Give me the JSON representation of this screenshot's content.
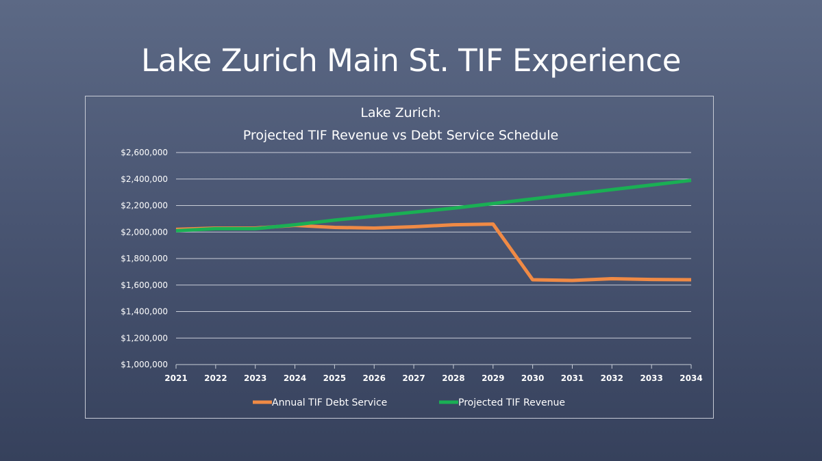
{
  "slide": {
    "title": "Lake Zurich Main St. TIF Experience"
  },
  "colors": {
    "debt_service": "#f08a45",
    "revenue": "#1aaf54",
    "grid": "#c9ced8",
    "text": "#ffffff"
  },
  "chart_data": {
    "type": "line",
    "title": [
      "Lake Zurich:",
      "Projected TIF Revenue vs Debt Service Schedule"
    ],
    "xlabel": "",
    "ylabel": "",
    "x": [
      2021,
      2022,
      2023,
      2024,
      2025,
      2026,
      2027,
      2028,
      2029,
      2030,
      2031,
      2032,
      2033,
      2034
    ],
    "x_tick_labels": [
      "2021",
      "2022",
      "2023",
      "2024",
      "2025",
      "2026",
      "2027",
      "2028",
      "2029",
      "2030",
      "2031",
      "2032",
      "2033",
      "2034"
    ],
    "ylim": [
      1000000,
      2600000
    ],
    "y_ticks": [
      1000000,
      1200000,
      1400000,
      1600000,
      1800000,
      2000000,
      2200000,
      2400000,
      2600000
    ],
    "y_tick_labels": [
      "$1,000,000",
      "$1,200,000",
      "$1,400,000",
      "$1,600,000",
      "$1,800,000",
      "$2,000,000",
      "$2,200,000",
      "$2,400,000",
      "$2,600,000"
    ],
    "grid": true,
    "legend_position": "bottom",
    "series": [
      {
        "name": "Annual TIF Debt Service",
        "color": "#f08a45",
        "values": [
          2020000,
          2030000,
          2030000,
          2050000,
          2035000,
          2030000,
          2040000,
          2055000,
          2060000,
          1640000,
          1635000,
          1648000,
          1642000,
          1640000
        ]
      },
      {
        "name": "Projected TIF Revenue",
        "color": "#1aaf54",
        "values": [
          2010000,
          2025000,
          2025000,
          2055000,
          2090000,
          2120000,
          2150000,
          2180000,
          2215000,
          2250000,
          2285000,
          2320000,
          2355000,
          2390000
        ]
      }
    ]
  }
}
